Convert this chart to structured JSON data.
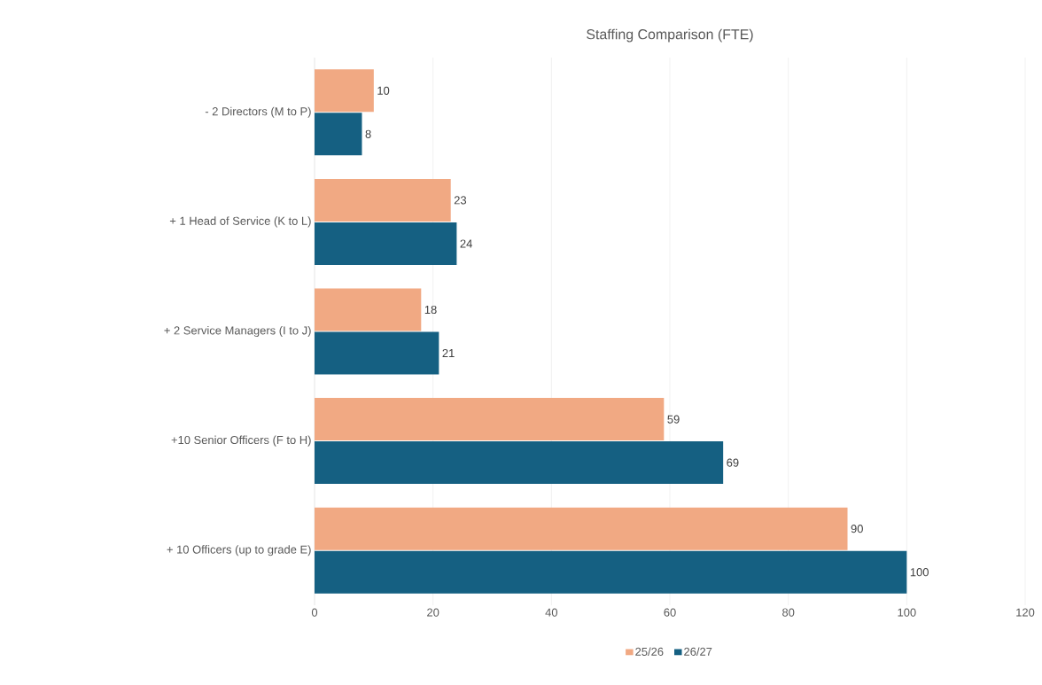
{
  "chart_data": {
    "type": "bar",
    "orientation": "horizontal",
    "title": "Staffing Comparison (FTE)",
    "categories": [
      "- 2 Directors (M to P)",
      "+ 1 Head of Service  (K to L)",
      "+ 2 Service Managers (I to J)",
      "+10 Senior Officers (F to H)",
      "+ 10 Officers (up to grade E)"
    ],
    "series": [
      {
        "name": "25/26",
        "color": "#f1a983",
        "values": [
          10,
          23,
          18,
          59,
          90
        ]
      },
      {
        "name": "26/27",
        "color": "#156082",
        "values": [
          8,
          24,
          21,
          69,
          100
        ]
      }
    ],
    "xlim": [
      0,
      120
    ],
    "xticks": [
      0,
      20,
      40,
      60,
      80,
      100,
      120
    ],
    "grid": "x",
    "legend": "bottom",
    "data_labels": true
  }
}
